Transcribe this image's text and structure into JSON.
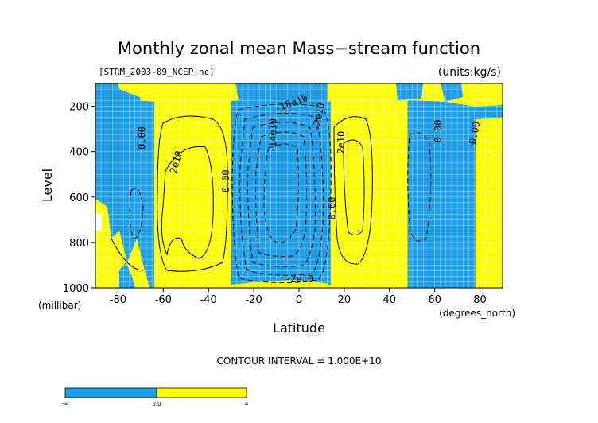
{
  "chart_data": {
    "type": "heatmap",
    "title": "Monthly zonal mean Mass−stream function",
    "file_label": "[STRM_2003-09_NCEP.nc]",
    "units_label": "(units:kg/s)",
    "xlabel": "Latitude",
    "ylabel": "Level",
    "x_units": "(degrees_north)",
    "y_units": "(millibar)",
    "xlim": [
      -90,
      90
    ],
    "ylim": [
      1000,
      100
    ],
    "x_ticks": [
      "-80",
      "-60",
      "-40",
      "-20",
      "0",
      "20",
      "40",
      "60",
      "80"
    ],
    "x_tick_values": [
      -80,
      -60,
      -40,
      -20,
      0,
      20,
      40,
      60,
      80
    ],
    "y_ticks": [
      "200",
      "400",
      "600",
      "800",
      "1000"
    ],
    "y_tick_values": [
      200,
      400,
      600,
      800,
      1000
    ],
    "contour_interval_text": "CONTOUR INTERVAL = 1.000E+10",
    "colors": {
      "negative": "#1e9ee8",
      "positive": "#ffff00"
    },
    "colorbar": {
      "labels": [
        "-∞",
        "0.0",
        "∞"
      ]
    },
    "bands": [
      {
        "lat_from": -90,
        "lat_to": -64,
        "sign": "negative"
      },
      {
        "lat_from": -64,
        "lat_to": -30,
        "sign": "positive"
      },
      {
        "lat_from": -30,
        "lat_to": 14,
        "sign": "negative"
      },
      {
        "lat_from": 14,
        "lat_to": 48,
        "sign": "positive"
      },
      {
        "lat_from": 48,
        "lat_to": 66,
        "sign": "negative"
      },
      {
        "lat_from": 66,
        "lat_to": 90,
        "sign": "negative"
      }
    ],
    "contour_labels": [
      {
        "text": "0.00",
        "lat": -68,
        "level": 340,
        "rotate": -90
      },
      {
        "text": "2e10",
        "lat": -53,
        "level": 450,
        "rotate": -75
      },
      {
        "text": "0.00",
        "lat": -31,
        "level": 530,
        "rotate": -90
      },
      {
        "text": "-14e10",
        "lat": -10,
        "level": 330,
        "rotate": -90
      },
      {
        "text": "-18e10",
        "lat": -3,
        "level": 200,
        "rotate": -20
      },
      {
        "text": "-2e10",
        "lat": 10,
        "level": 250,
        "rotate": -80
      },
      {
        "text": "0.00",
        "lat": 16,
        "level": 650,
        "rotate": -90
      },
      {
        "text": "2e10",
        "lat": 20,
        "level": 360,
        "rotate": -90
      },
      {
        "text": "-2e10",
        "lat": 0,
        "level": 975,
        "rotate": 0
      },
      {
        "text": "0.00",
        "lat": 63,
        "level": 310,
        "rotate": -90
      },
      {
        "text": "0.00",
        "lat": 79,
        "level": 320,
        "rotate": -80
      }
    ]
  }
}
